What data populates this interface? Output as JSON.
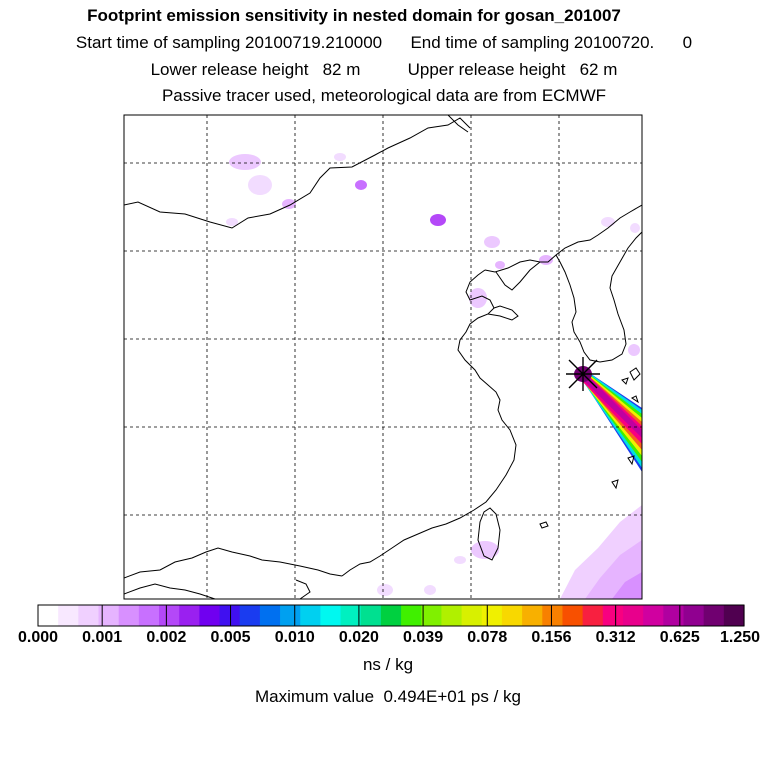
{
  "header": {
    "title": "Footprint emission sensitivity in nested domain for gosan_201007",
    "sampling": "Start time of sampling 20100719.210000      End time of sampling 20100720.      0",
    "release": "Lower release height   82 m          Upper release height   62 m",
    "tracer": "Passive tracer used, meteorological data are from ECMWF"
  },
  "colorbar": {
    "tick_labels": [
      "0.000",
      "0.001",
      "0.002",
      "0.005",
      "0.010",
      "0.020",
      "0.039",
      "0.078",
      "0.156",
      "0.312",
      "0.625",
      "1.250"
    ],
    "colors": [
      "#ffffff",
      "#f8e8ff",
      "#f0d0ff",
      "#e6b4ff",
      "#d890ff",
      "#c870ff",
      "#b448f8",
      "#9a20f0",
      "#7000f0",
      "#4010f0",
      "#1a3cf0",
      "#0070f0",
      "#00a0f0",
      "#00d0f0",
      "#00f8f0",
      "#00f0c0",
      "#00e090",
      "#00d040",
      "#40f000",
      "#80f000",
      "#b0f000",
      "#d8f000",
      "#f0f000",
      "#f8d800",
      "#f8b000",
      "#f88000",
      "#f85000",
      "#f82040",
      "#f80080",
      "#e8008c",
      "#d000a0",
      "#b000a0",
      "#900090",
      "#700070",
      "#500050"
    ],
    "units": "ns / kg"
  },
  "max_value_text": "Maximum value  0.494E+01 ps / kg",
  "receptor_marker": "star-marker"
}
